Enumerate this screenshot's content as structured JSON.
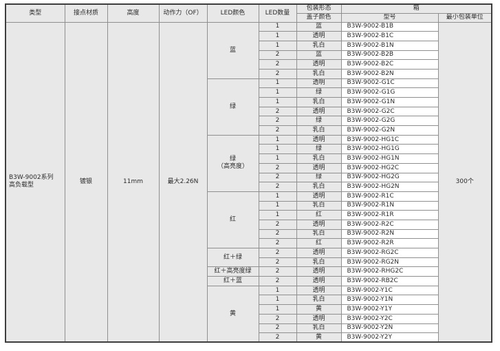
{
  "table": {
    "header": {
      "type": "类型",
      "contact_material": "接点材质",
      "height": "高度",
      "operating_force": "动作力（OF）",
      "led_color": "LED颜色",
      "led_count": "LED数量",
      "packaging_form": "包装形态",
      "cover_color": "盖子颜色",
      "box": "箱",
      "model": "型号",
      "min_packaging_unit": "最小包装单位"
    },
    "product": {
      "type": "B3W-9002系列\n高负载型",
      "contact_material": "镀银",
      "height": "11mm",
      "operating_force": "最大2.26N",
      "min_packaging_unit": "300个"
    },
    "groups": [
      {
        "led_color": "蓝",
        "rows": [
          {
            "led_count": "1",
            "cover_color": "蓝",
            "model": "B3W-9002-B1B"
          },
          {
            "led_count": "1",
            "cover_color": "透明",
            "model": "B3W-9002-B1C"
          },
          {
            "led_count": "1",
            "cover_color": "乳白",
            "model": "B3W-9002-B1N"
          },
          {
            "led_count": "2",
            "cover_color": "蓝",
            "model": "B3W-9002-B2B"
          },
          {
            "led_count": "2",
            "cover_color": "透明",
            "model": "B3W-9002-B2C"
          },
          {
            "led_count": "2",
            "cover_color": "乳白",
            "model": "B3W-9002-B2N"
          }
        ]
      },
      {
        "led_color": "绿",
        "rows": [
          {
            "led_count": "1",
            "cover_color": "透明",
            "model": "B3W-9002-G1C"
          },
          {
            "led_count": "1",
            "cover_color": "绿",
            "model": "B3W-9002-G1G"
          },
          {
            "led_count": "1",
            "cover_color": "乳白",
            "model": "B3W-9002-G1N"
          },
          {
            "led_count": "2",
            "cover_color": "透明",
            "model": "B3W-9002-G2C"
          },
          {
            "led_count": "2",
            "cover_color": "绿",
            "model": "B3W-9002-G2G"
          },
          {
            "led_count": "2",
            "cover_color": "乳白",
            "model": "B3W-9002-G2N"
          }
        ]
      },
      {
        "led_color": "绿\n（高亮度）",
        "rows": [
          {
            "led_count": "1",
            "cover_color": "透明",
            "model": "B3W-9002-HG1C"
          },
          {
            "led_count": "1",
            "cover_color": "绿",
            "model": "B3W-9002-HG1G"
          },
          {
            "led_count": "1",
            "cover_color": "乳白",
            "model": "B3W-9002-HG1N"
          },
          {
            "led_count": "2",
            "cover_color": "透明",
            "model": "B3W-9002-HG2C"
          },
          {
            "led_count": "2",
            "cover_color": "绿",
            "model": "B3W-9002-HG2G"
          },
          {
            "led_count": "2",
            "cover_color": "乳白",
            "model": "B3W-9002-HG2N"
          }
        ]
      },
      {
        "led_color": "红",
        "rows": [
          {
            "led_count": "1",
            "cover_color": "透明",
            "model": "B3W-9002-R1C"
          },
          {
            "led_count": "1",
            "cover_color": "乳白",
            "model": "B3W-9002-R1N"
          },
          {
            "led_count": "1",
            "cover_color": "红",
            "model": "B3W-9002-R1R"
          },
          {
            "led_count": "2",
            "cover_color": "透明",
            "model": "B3W-9002-R2C"
          },
          {
            "led_count": "2",
            "cover_color": "乳白",
            "model": "B3W-9002-R2N"
          },
          {
            "led_count": "2",
            "cover_color": "红",
            "model": "B3W-9002-R2R"
          }
        ]
      },
      {
        "led_color": "红＋绿",
        "rows": [
          {
            "led_count": "2",
            "cover_color": "透明",
            "model": "B3W-9002-RG2C"
          },
          {
            "led_count": "2",
            "cover_color": "乳白",
            "model": "B3W-9002-RG2N"
          }
        ]
      },
      {
        "led_color": "红＋高亮度绿",
        "rows": [
          {
            "led_count": "2",
            "cover_color": "透明",
            "model": "B3W-9002-RHG2C"
          }
        ]
      },
      {
        "led_color": "红＋蓝",
        "rows": [
          {
            "led_count": "2",
            "cover_color": "透明",
            "model": "B3W-9002-RB2C"
          }
        ]
      },
      {
        "led_color": "黄",
        "rows": [
          {
            "led_count": "1",
            "cover_color": "透明",
            "model": "B3W-9002-Y1C"
          },
          {
            "led_count": "1",
            "cover_color": "乳白",
            "model": "B3W-9002-Y1N"
          },
          {
            "led_count": "1",
            "cover_color": "黄",
            "model": "B3W-9002-Y1Y"
          },
          {
            "led_count": "2",
            "cover_color": "透明",
            "model": "B3W-9002-Y2C"
          },
          {
            "led_count": "2",
            "cover_color": "乳白",
            "model": "B3W-9002-Y2N"
          },
          {
            "led_count": "2",
            "cover_color": "黄",
            "model": "B3W-9002-Y2Y"
          }
        ]
      }
    ]
  },
  "colors": {
    "cell_bg": "#e8e8e8",
    "model_bg": "#ffffff",
    "grid_line": "#8f8f8f",
    "outer_border": "#3d3d3d",
    "text": "#2b2b2b",
    "page_bg": "#ffffff"
  }
}
